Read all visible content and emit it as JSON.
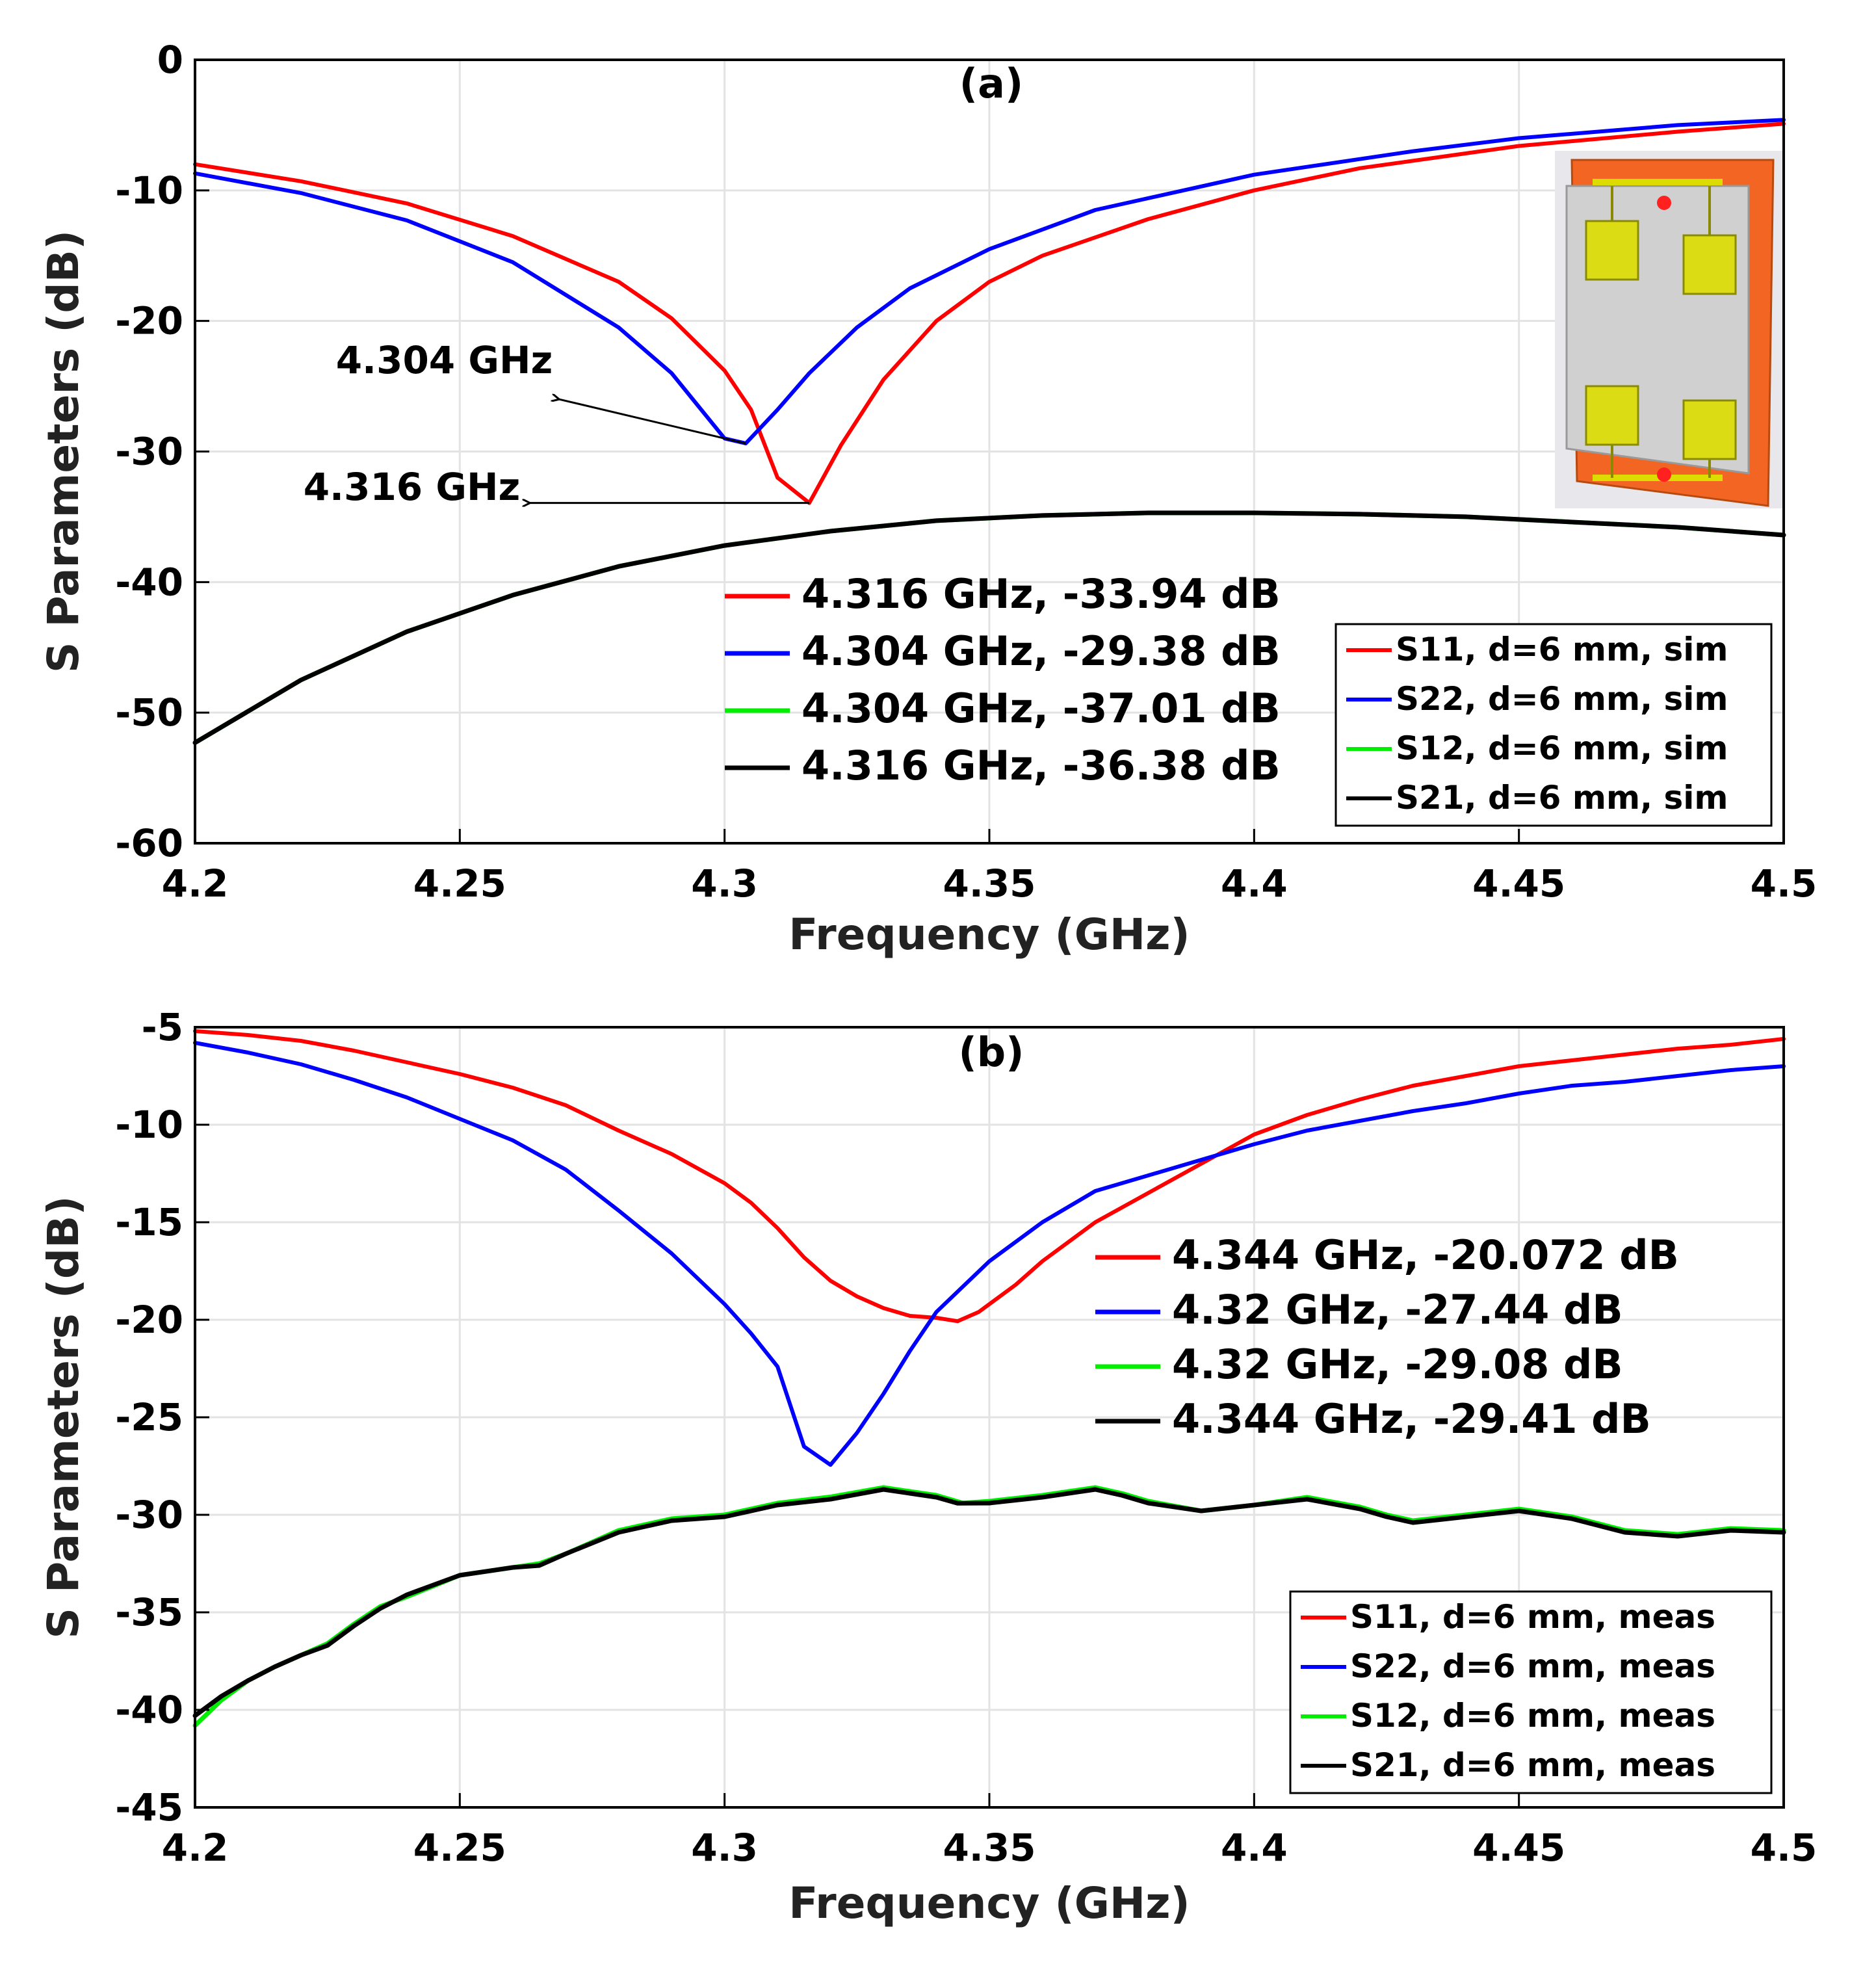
{
  "chart_data": [
    {
      "type": "line",
      "panel_label": "(a)",
      "title": "",
      "xlabel": "Frequency (GHz)",
      "ylabel": "S Parameters (dB)",
      "xlim": [
        4.2,
        4.5
      ],
      "ylim": [
        -60,
        0
      ],
      "xticks": [
        4.2,
        4.25,
        4.3,
        4.35,
        4.4,
        4.45,
        4.5
      ],
      "xtick_labels": [
        "4.2",
        "4.25",
        "4.3",
        "4.35",
        "4.4",
        "4.45",
        "4.5"
      ],
      "yticks": [
        0,
        -10,
        -20,
        -30,
        -40,
        -50,
        -60
      ],
      "ytick_labels": [
        "0",
        "-10",
        "-20",
        "-30",
        "-40",
        "-50",
        "-60"
      ],
      "grid": true,
      "legend_position": "bottom-right",
      "colors": {
        "S11": "#ff0000",
        "S22": "#0000ff",
        "S12": "#00ee00",
        "S21": "#000000"
      },
      "series": [
        {
          "name": "S11, d=6 mm, sim",
          "color": "#ff0000",
          "x": [
            4.2,
            4.22,
            4.24,
            4.26,
            4.28,
            4.29,
            4.295,
            4.3,
            4.305,
            4.31,
            4.316,
            4.322,
            4.33,
            4.34,
            4.35,
            4.36,
            4.38,
            4.4,
            4.42,
            4.45,
            4.48,
            4.5
          ],
          "y": [
            -8.0,
            -9.3,
            -11.0,
            -13.5,
            -17.0,
            -19.8,
            -21.8,
            -23.8,
            -26.8,
            -32.0,
            -33.94,
            -29.5,
            -24.5,
            -20.0,
            -17.0,
            -15.0,
            -12.2,
            -10.0,
            -8.3,
            -6.6,
            -5.5,
            -4.9
          ]
        },
        {
          "name": "S22, d=6 mm, sim",
          "color": "#0000ff",
          "x": [
            4.2,
            4.22,
            4.24,
            4.26,
            4.28,
            4.29,
            4.295,
            4.3,
            4.304,
            4.31,
            4.316,
            4.325,
            4.335,
            4.35,
            4.37,
            4.4,
            4.43,
            4.45,
            4.48,
            4.5
          ],
          "y": [
            -8.7,
            -10.2,
            -12.3,
            -15.5,
            -20.5,
            -24.0,
            -26.5,
            -29.0,
            -29.38,
            -26.8,
            -24.0,
            -20.5,
            -17.5,
            -14.5,
            -11.5,
            -8.8,
            -7.0,
            -6.0,
            -5.0,
            -4.6
          ]
        },
        {
          "name": "S12, d=6 mm, sim",
          "color": "#00ee00",
          "x": [
            4.2,
            4.22,
            4.24,
            4.26,
            4.28,
            4.3,
            4.32,
            4.34,
            4.36,
            4.38,
            4.4,
            4.42,
            4.44,
            4.46,
            4.48,
            4.5
          ],
          "y": [
            -52.3,
            -47.5,
            -43.8,
            -41.0,
            -38.8,
            -37.2,
            -36.1,
            -35.3,
            -34.9,
            -34.7,
            -34.7,
            -34.8,
            -35.0,
            -35.4,
            -35.8,
            -36.4
          ]
        },
        {
          "name": "S21, d=6 mm, sim",
          "color": "#000000",
          "x": [
            4.2,
            4.22,
            4.24,
            4.26,
            4.28,
            4.3,
            4.32,
            4.34,
            4.36,
            4.38,
            4.4,
            4.42,
            4.44,
            4.46,
            4.48,
            4.5
          ],
          "y": [
            -52.3,
            -47.5,
            -43.8,
            -41.0,
            -38.8,
            -37.2,
            -36.1,
            -35.3,
            -34.9,
            -34.7,
            -34.7,
            -34.8,
            -35.0,
            -35.4,
            -35.8,
            -36.4
          ]
        }
      ],
      "marker_labels": [
        {
          "text": "4.316 GHz, -33.94 dB",
          "color": "#ff0000"
        },
        {
          "text": "4.304 GHz, -29.38 dB",
          "color": "#0000ff"
        },
        {
          "text": "4.304 GHz, -37.01 dB",
          "color": "#00ee00"
        },
        {
          "text": "4.316 GHz, -36.38 dB",
          "color": "#000000"
        }
      ],
      "annotations": [
        {
          "text": "4.304 GHz",
          "point": [
            4.304,
            -29.38
          ],
          "text_at": [
            4.27,
            -26.0
          ]
        },
        {
          "text": "4.316 GHz",
          "point": [
            4.316,
            -33.94
          ],
          "text_at": [
            4.27,
            -34.2
          ]
        }
      ],
      "inset": true
    },
    {
      "type": "line",
      "panel_label": "(b)",
      "title": "",
      "xlabel": "Frequency (GHz)",
      "ylabel": "S Parameters (dB)",
      "xlim": [
        4.2,
        4.5
      ],
      "ylim": [
        -45,
        -5
      ],
      "xticks": [
        4.2,
        4.25,
        4.3,
        4.35,
        4.4,
        4.45,
        4.5
      ],
      "xtick_labels": [
        "4.2",
        "4.25",
        "4.3",
        "4.35",
        "4.4",
        "4.45",
        "4.5"
      ],
      "yticks": [
        -5,
        -10,
        -15,
        -20,
        -25,
        -30,
        -35,
        -40,
        -45
      ],
      "ytick_labels": [
        "-5",
        "-10",
        "-15",
        "-20",
        "-25",
        "-30",
        "-35",
        "-40",
        "-45"
      ],
      "grid": true,
      "legend_position": "bottom-right",
      "series": [
        {
          "name": "S11, d=6 mm, meas",
          "color": "#ff0000",
          "x": [
            4.2,
            4.21,
            4.22,
            4.23,
            4.24,
            4.25,
            4.26,
            4.27,
            4.28,
            4.29,
            4.3,
            4.305,
            4.31,
            4.315,
            4.32,
            4.325,
            4.33,
            4.335,
            4.34,
            4.344,
            4.348,
            4.355,
            4.36,
            4.37,
            4.38,
            4.39,
            4.4,
            4.41,
            4.42,
            4.43,
            4.44,
            4.45,
            4.46,
            4.47,
            4.48,
            4.49,
            4.5
          ],
          "y": [
            -5.2,
            -5.4,
            -5.7,
            -6.2,
            -6.8,
            -7.4,
            -8.1,
            -9.0,
            -10.3,
            -11.5,
            -13.0,
            -14.0,
            -15.3,
            -16.8,
            -18.0,
            -18.8,
            -19.4,
            -19.8,
            -19.9,
            -20.072,
            -19.6,
            -18.2,
            -17.0,
            -15.0,
            -13.5,
            -12.0,
            -10.5,
            -9.5,
            -8.7,
            -8.0,
            -7.5,
            -7.0,
            -6.7,
            -6.4,
            -6.1,
            -5.9,
            -5.6
          ]
        },
        {
          "name": "S22, d=6 mm, meas",
          "color": "#0000ff",
          "x": [
            4.2,
            4.21,
            4.22,
            4.23,
            4.24,
            4.25,
            4.26,
            4.27,
            4.28,
            4.29,
            4.3,
            4.305,
            4.31,
            4.315,
            4.32,
            4.325,
            4.33,
            4.335,
            4.34,
            4.35,
            4.36,
            4.37,
            4.38,
            4.39,
            4.4,
            4.41,
            4.42,
            4.43,
            4.44,
            4.45,
            4.46,
            4.47,
            4.48,
            4.49,
            4.5
          ],
          "y": [
            -5.8,
            -6.3,
            -6.9,
            -7.7,
            -8.6,
            -9.7,
            -10.8,
            -12.3,
            -14.4,
            -16.6,
            -19.2,
            -20.7,
            -22.4,
            -26.5,
            -27.44,
            -25.8,
            -23.8,
            -21.6,
            -19.6,
            -17.0,
            -15.0,
            -13.4,
            -12.6,
            -11.8,
            -11.0,
            -10.3,
            -9.8,
            -9.3,
            -8.9,
            -8.4,
            -8.0,
            -7.8,
            -7.5,
            -7.2,
            -7.0
          ]
        },
        {
          "name": "S12, d=6 mm, meas",
          "color": "#00ee00",
          "x": [
            4.2,
            4.205,
            4.21,
            4.215,
            4.22,
            4.225,
            4.23,
            4.235,
            4.24,
            4.25,
            4.26,
            4.265,
            4.27,
            4.28,
            4.29,
            4.3,
            4.31,
            4.32,
            4.33,
            4.335,
            4.34,
            4.345,
            4.35,
            4.36,
            4.37,
            4.375,
            4.38,
            4.39,
            4.4,
            4.41,
            4.42,
            4.425,
            4.43,
            4.44,
            4.45,
            4.46,
            4.47,
            4.48,
            4.49,
            4.5
          ],
          "y": [
            -40.8,
            -39.5,
            -38.5,
            -37.8,
            -37.2,
            -36.6,
            -35.6,
            -34.7,
            -34.2,
            -33.1,
            -32.7,
            -32.5,
            -32.0,
            -30.8,
            -30.2,
            -30.0,
            -29.4,
            -29.08,
            -28.6,
            -28.8,
            -29.0,
            -29.4,
            -29.3,
            -29.0,
            -28.6,
            -28.9,
            -29.3,
            -29.8,
            -29.5,
            -29.1,
            -29.6,
            -30.0,
            -30.3,
            -30.0,
            -29.7,
            -30.1,
            -30.8,
            -31.0,
            -30.7,
            -30.8
          ]
        },
        {
          "name": "S21, d=6 mm, meas",
          "color": "#000000",
          "x": [
            4.2,
            4.205,
            4.21,
            4.215,
            4.22,
            4.225,
            4.23,
            4.235,
            4.24,
            4.25,
            4.26,
            4.265,
            4.27,
            4.28,
            4.29,
            4.3,
            4.31,
            4.32,
            4.33,
            4.335,
            4.34,
            4.344,
            4.35,
            4.36,
            4.37,
            4.375,
            4.38,
            4.39,
            4.4,
            4.41,
            4.42,
            4.425,
            4.43,
            4.44,
            4.45,
            4.46,
            4.47,
            4.48,
            4.49,
            4.5
          ],
          "y": [
            -40.3,
            -39.3,
            -38.5,
            -37.8,
            -37.2,
            -36.7,
            -35.7,
            -34.8,
            -34.1,
            -33.1,
            -32.7,
            -32.6,
            -32.0,
            -30.9,
            -30.3,
            -30.1,
            -29.5,
            -29.2,
            -28.7,
            -28.9,
            -29.1,
            -29.41,
            -29.4,
            -29.1,
            -28.7,
            -29.0,
            -29.4,
            -29.8,
            -29.5,
            -29.2,
            -29.7,
            -30.1,
            -30.4,
            -30.1,
            -29.8,
            -30.2,
            -30.9,
            -31.1,
            -30.8,
            -30.9
          ]
        }
      ],
      "marker_labels": [
        {
          "text": "4.344 GHz, -20.072 dB",
          "color": "#ff0000"
        },
        {
          "text": "4.32 GHz, -27.44 dB",
          "color": "#0000ff"
        },
        {
          "text": "4.32 GHz, -29.08 dB",
          "color": "#00ee00"
        },
        {
          "text": "4.344 GHz, -29.41 dB",
          "color": "#000000"
        }
      ]
    }
  ]
}
